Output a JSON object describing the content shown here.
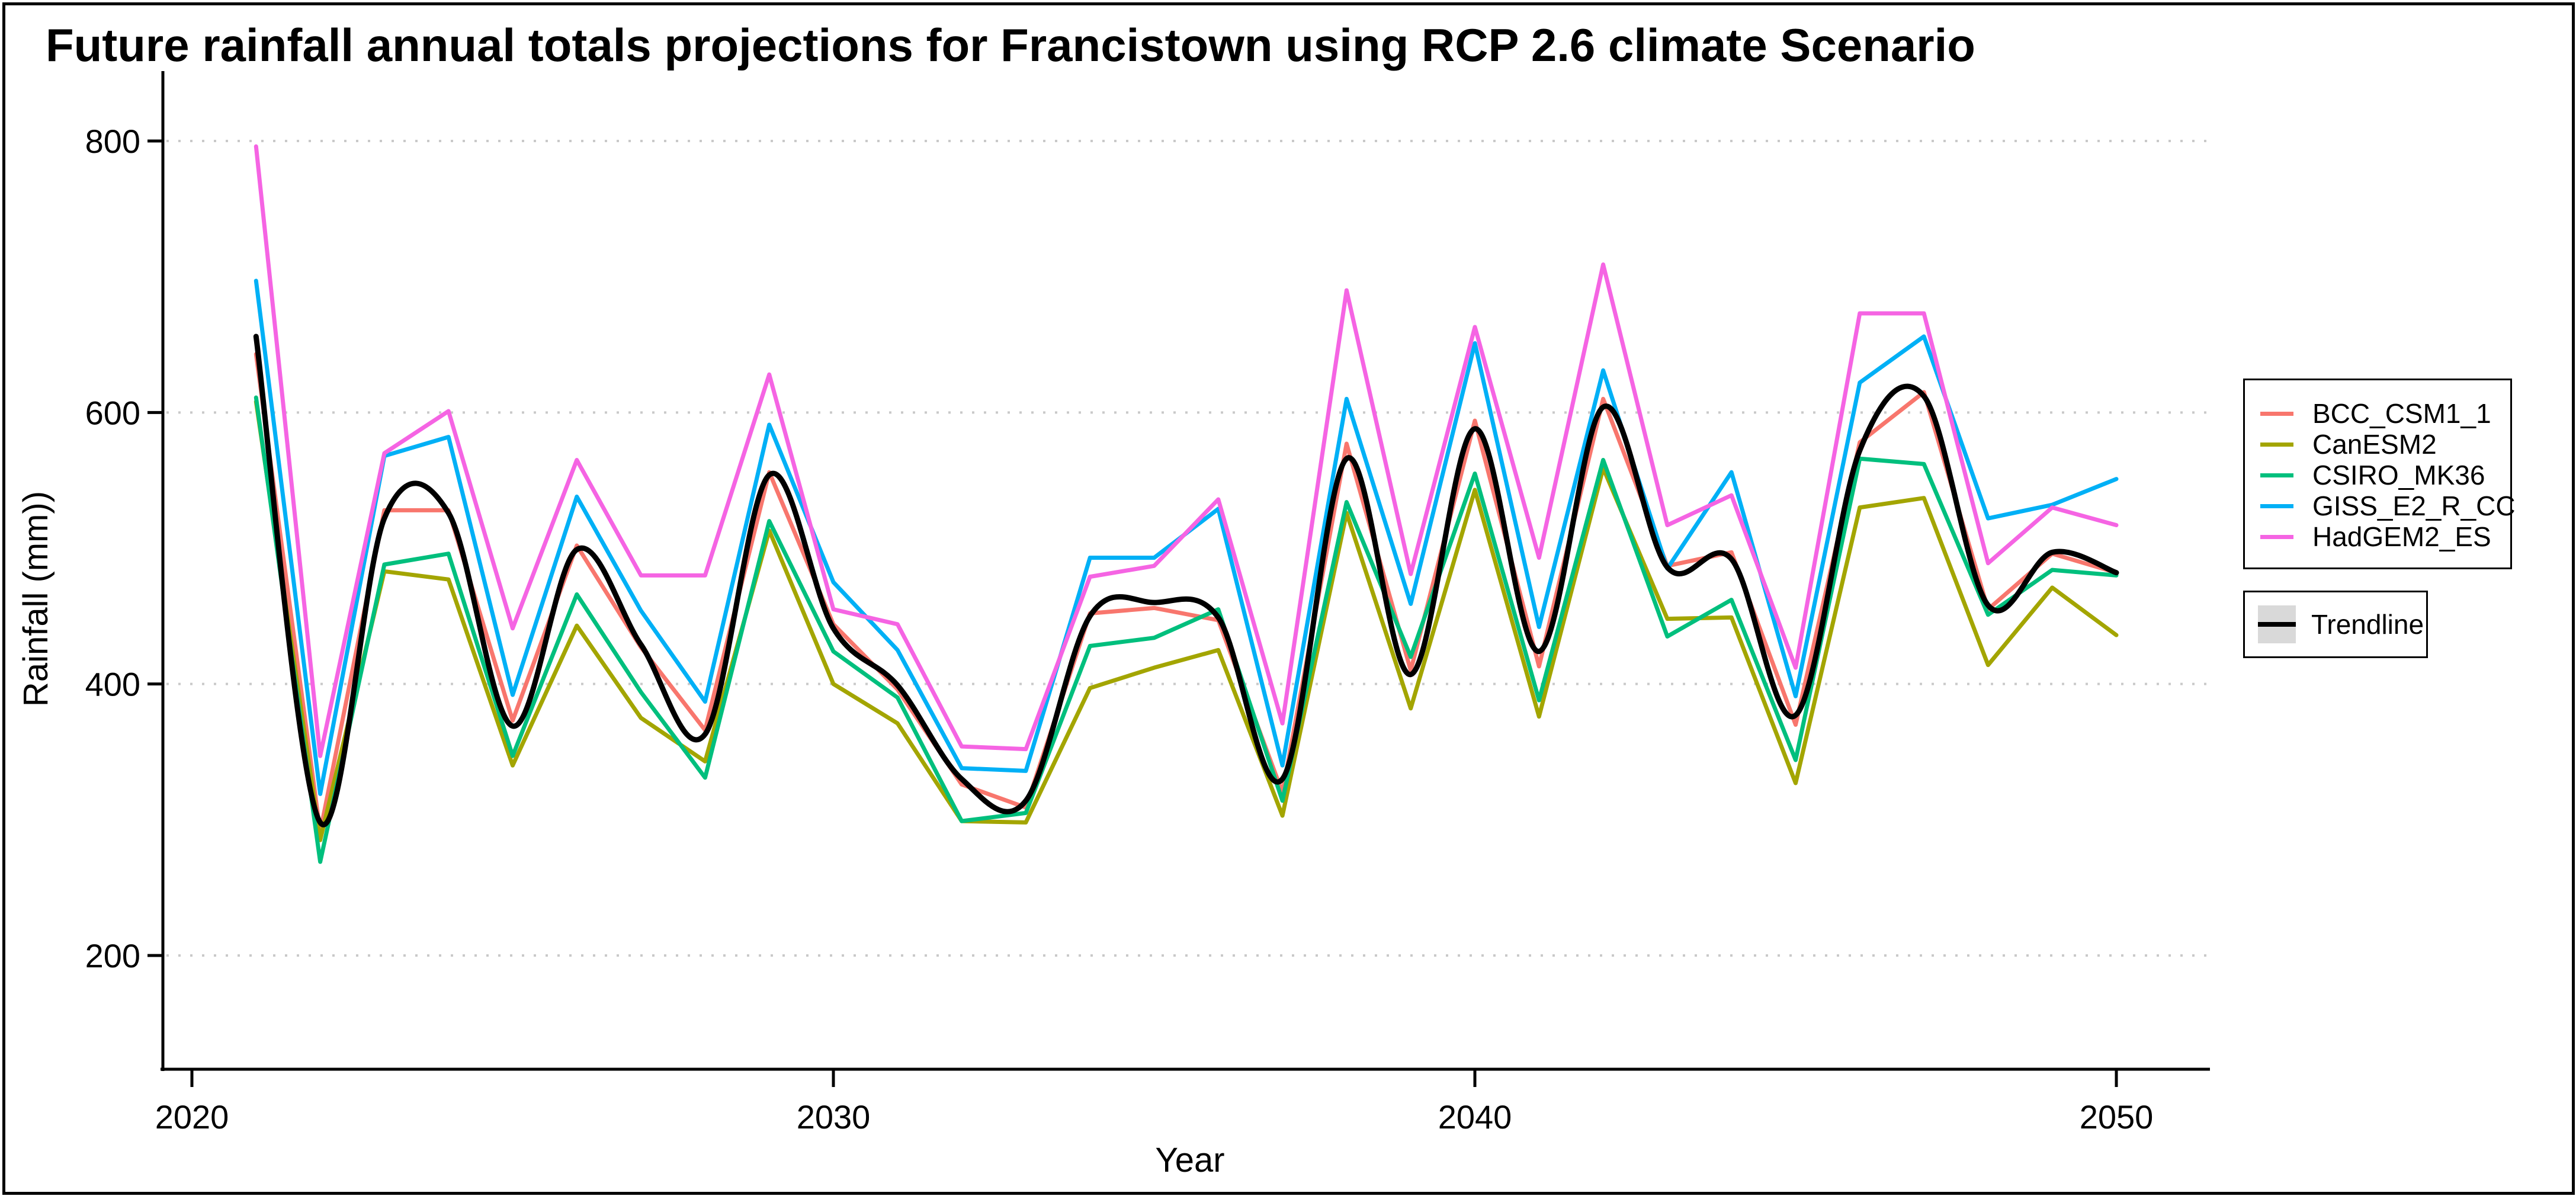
{
  "title": "Future rainfall annual totals projections for Francistown using RCP 2.6 climate Scenario",
  "x_axis_label": "Year",
  "y_axis_label": "Rainfall (mm))",
  "chart_data": {
    "type": "line",
    "title": "Future rainfall annual totals projections for Francistown using RCP 2.6 climate Scenario",
    "xlabel": "Year",
    "ylabel": "Rainfall (mm))",
    "grid": "horizontal-dotted-only",
    "legend_position": "right",
    "x_ticks": [
      2020,
      2030,
      2040,
      2050
    ],
    "y_ticks": [
      200,
      400,
      600,
      800
    ],
    "xlim": [
      2019.5,
      2051.5
    ],
    "ylim": [
      110,
      850
    ],
    "x": [
      2021,
      2022,
      2023,
      2024,
      2025,
      2026,
      2027,
      2028,
      2029,
      2030,
      2031,
      2032,
      2033,
      2034,
      2035,
      2036,
      2037,
      2038,
      2039,
      2040,
      2041,
      2042,
      2043,
      2044,
      2045,
      2046,
      2047,
      2048,
      2049,
      2050
    ],
    "series": [
      {
        "name": "BCC_CSM1_1",
        "color": "#F8766D",
        "values": [
          643,
          291,
          528,
          528,
          373,
          502,
          427,
          366,
          556,
          444,
          396,
          326,
          309,
          452,
          456,
          447,
          320,
          577,
          410,
          594,
          413,
          610,
          487,
          497,
          370,
          578,
          615,
          455,
          496,
          482
        ]
      },
      {
        "name": "CanESM2",
        "color": "#A3A500",
        "values": [
          608,
          285,
          483,
          477,
          340,
          443,
          375,
          343,
          513,
          400,
          371,
          299,
          298,
          397,
          412,
          425,
          303,
          526,
          382,
          543,
          376,
          559,
          448,
          449,
          327,
          530,
          537,
          414,
          471,
          436
        ]
      },
      {
        "name": "CSIRO_MK36",
        "color": "#00BF7D",
        "values": [
          611,
          269,
          488,
          496,
          347,
          466,
          394,
          331,
          520,
          424,
          390,
          299,
          305,
          428,
          434,
          455,
          314,
          534,
          420,
          555,
          388,
          565,
          435,
          462,
          344,
          566,
          562,
          451,
          484,
          480
        ]
      },
      {
        "name": "GISS_E2_R_CC",
        "color": "#00B0F6",
        "values": [
          697,
          319,
          568,
          582,
          392,
          538,
          454,
          387,
          591,
          475,
          425,
          338,
          336,
          493,
          493,
          529,
          340,
          610,
          459,
          651,
          442,
          631,
          485,
          556,
          391,
          622,
          656,
          522,
          532,
          551
        ]
      },
      {
        "name": "HadGEM2_ES",
        "color": "#F564E3",
        "values": [
          796,
          347,
          570,
          601,
          441,
          565,
          480,
          480,
          628,
          455,
          444,
          354,
          352,
          479,
          487,
          536,
          371,
          690,
          481,
          663,
          493,
          709,
          517,
          539,
          412,
          673,
          673,
          489,
          530,
          517
        ]
      }
    ],
    "trendline": {
      "name": "Trendline",
      "color": "#000000",
      "key_fill": "#d9d9d9",
      "values": [
        656,
        298,
        522,
        526,
        369,
        499,
        429,
        363,
        554,
        441,
        399,
        330,
        314,
        450,
        460,
        449,
        330,
        566,
        407,
        588,
        424,
        604,
        486,
        492,
        377,
        572,
        612,
        458,
        497,
        482
      ]
    }
  }
}
